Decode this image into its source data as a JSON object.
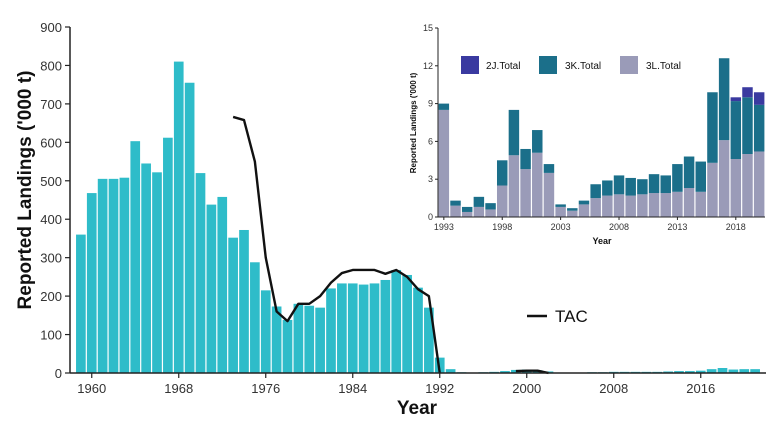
{
  "chart_data": [
    {
      "type": "bar",
      "xlabel": "Year",
      "ylabel": "Reported Landings ('000 t)",
      "xlim": [
        1958,
        2022
      ],
      "ylim": [
        0,
        900
      ],
      "x_ticks": [
        1960,
        1968,
        1976,
        1984,
        1992,
        2000,
        2008,
        2016
      ],
      "y_ticks": [
        0,
        100,
        200,
        300,
        400,
        500,
        600,
        700,
        800,
        900
      ],
      "grid": false,
      "legend": "right",
      "colors": {
        "bars": "#2ebcc9",
        "tac": "#111111"
      },
      "series": [
        {
          "kind": "bar",
          "x": [
            1959,
            1960,
            1961,
            1962,
            1963,
            1964,
            1965,
            1966,
            1967,
            1968,
            1969,
            1970,
            1971,
            1972,
            1973,
            1974,
            1975,
            1976,
            1977,
            1978,
            1979,
            1980,
            1981,
            1982,
            1983,
            1984,
            1985,
            1986,
            1987,
            1988,
            1989,
            1990,
            1991,
            1992,
            1993,
            1994,
            1995,
            1996,
            1997,
            1998,
            1999,
            2000,
            2001,
            2002,
            2003,
            2004,
            2005,
            2006,
            2007,
            2008,
            2009,
            2010,
            2011,
            2012,
            2013,
            2014,
            2015,
            2016,
            2017,
            2018,
            2019,
            2020,
            2021
          ],
          "values": [
            360,
            468,
            505,
            505,
            508,
            603,
            545,
            522,
            612,
            810,
            755,
            520,
            438,
            458,
            352,
            372,
            288,
            215,
            173,
            138,
            180,
            175,
            170,
            220,
            233,
            233,
            230,
            233,
            242,
            268,
            255,
            222,
            170,
            40,
            10,
            2,
            1,
            2,
            3,
            5,
            8,
            9,
            7,
            4,
            1,
            1,
            1,
            2,
            2,
            3,
            3,
            3,
            3,
            3,
            4,
            5,
            5,
            6,
            10,
            13,
            9,
            10,
            10
          ]
        },
        {
          "name": "TAC",
          "kind": "line",
          "x": [
            1973,
            1974,
            1975,
            1976,
            1977,
            1978,
            1979,
            1980,
            1981,
            1982,
            1983,
            1984,
            1985,
            1986,
            1987,
            1988,
            1989,
            1990,
            1991,
            1992,
            1999,
            2000,
            2001,
            2002
          ],
          "values": [
            666,
            658,
            550,
            300,
            160,
            135,
            180,
            180,
            200,
            235,
            260,
            268,
            268,
            268,
            258,
            268,
            250,
            218,
            200,
            0,
            5,
            6,
            6,
            0
          ]
        }
      ]
    },
    {
      "type": "bar",
      "stacked": true,
      "xlabel": "Year",
      "ylabel": "Reported Landings ('000 t)",
      "xlim": [
        1992.5,
        2020.5
      ],
      "ylim": [
        0,
        15
      ],
      "x_ticks": [
        1993,
        1998,
        2003,
        2008,
        2013,
        2018
      ],
      "y_ticks": [
        0,
        3,
        6,
        9,
        12,
        15
      ],
      "grid": false,
      "legend": "top",
      "categories": [
        1993,
        1994,
        1995,
        1996,
        1997,
        1998,
        1999,
        2000,
        2001,
        2002,
        2003,
        2004,
        2005,
        2006,
        2007,
        2008,
        2009,
        2010,
        2011,
        2012,
        2013,
        2014,
        2015,
        2016,
        2017,
        2018,
        2019,
        2020
      ],
      "series": [
        {
          "name": "2J.Total",
          "color": "#3a3aa0",
          "values": [
            0,
            0,
            0,
            0,
            0,
            0,
            0,
            0,
            0,
            0,
            0,
            0,
            0,
            0,
            0,
            0,
            0,
            0,
            0,
            0,
            0,
            0,
            0,
            0,
            0,
            0.3,
            0.8,
            1.0
          ]
        },
        {
          "name": "3K.Total",
          "color": "#1b6f8a",
          "values": [
            0.5,
            0.4,
            0.4,
            0.8,
            0.5,
            2.0,
            3.6,
            1.6,
            1.8,
            0.7,
            0.2,
            0.2,
            0.3,
            1.1,
            1.2,
            1.5,
            1.4,
            1.2,
            1.5,
            1.4,
            2.2,
            2.5,
            2.4,
            5.6,
            6.5,
            4.6,
            4.5,
            3.7
          ]
        },
        {
          "name": "3L.Total",
          "color": "#9a9bb8",
          "values": [
            8.5,
            0.9,
            0.4,
            0.8,
            0.6,
            2.5,
            4.9,
            3.8,
            5.1,
            3.5,
            0.8,
            0.5,
            1.0,
            1.5,
            1.7,
            1.8,
            1.7,
            1.8,
            1.9,
            1.9,
            2.0,
            2.3,
            2.0,
            4.3,
            6.1,
            4.6,
            5.0,
            5.2
          ]
        }
      ]
    }
  ],
  "main": {
    "ylabel": "Reported Landings ('000 t)",
    "xlabel": "Year",
    "legend_label": "TAC"
  },
  "inset": {
    "ylabel": "Reported Landings ('000 t)",
    "xlabel": "Year",
    "legend": [
      "2J.Total",
      "3K.Total",
      "3L.Total"
    ]
  }
}
